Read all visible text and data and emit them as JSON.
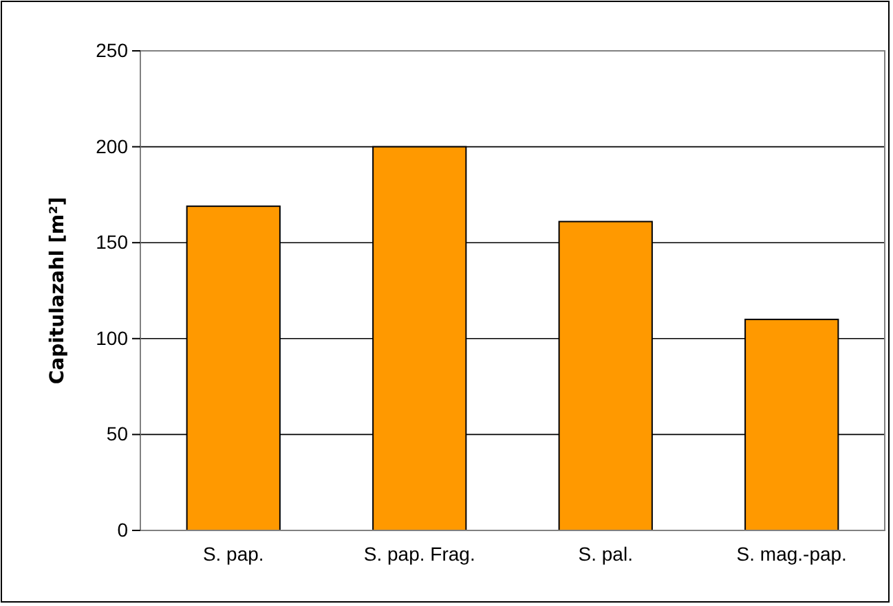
{
  "chart_data": {
    "type": "bar",
    "ylabel": "Capitulazahl [m²]",
    "categories": [
      "S. pap.",
      "S. pap. Frag.",
      "S. pal.",
      "S. mag.-pap."
    ],
    "values": [
      169,
      200,
      161,
      110
    ],
    "color": "#ff9900",
    "ylim": [
      0,
      250
    ],
    "yticks": [
      0,
      50,
      100,
      150,
      200,
      250
    ],
    "grid": "y"
  }
}
